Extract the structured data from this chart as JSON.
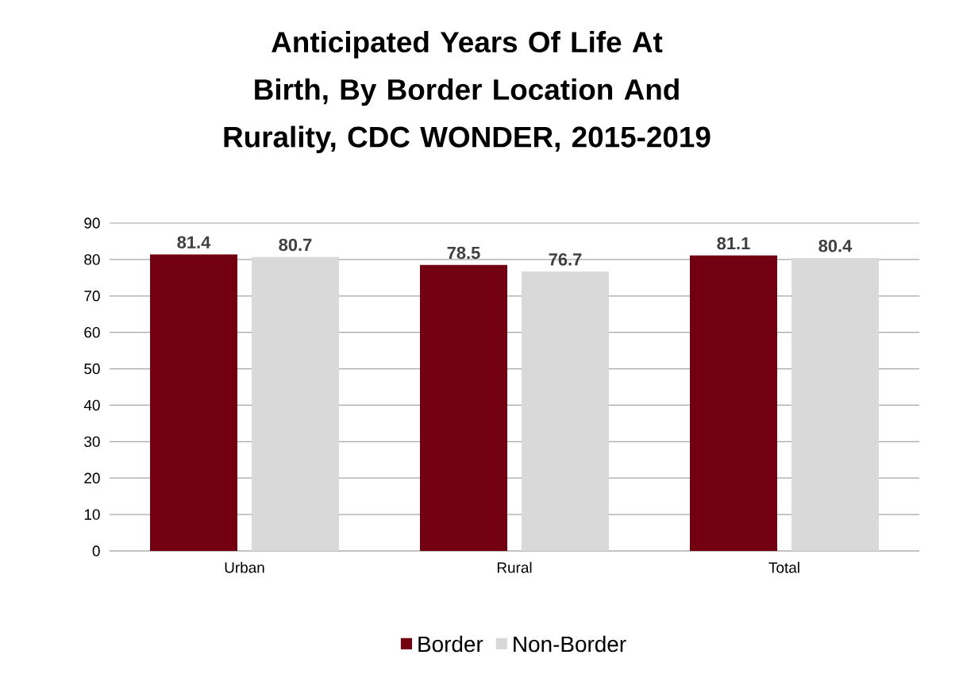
{
  "chart_data": {
    "type": "bar",
    "title": "Anticipated Years Of Life At Birth, By Border Location And Rurality, CDC WONDER, 2015-2019",
    "categories": [
      "Urban",
      "Rural",
      "Total"
    ],
    "series": [
      {
        "name": "Border",
        "color": "#720010",
        "values": [
          81.4,
          78.5,
          81.1
        ]
      },
      {
        "name": "Non-Border",
        "color": "#d9d9d9",
        "values": [
          80.7,
          76.7,
          80.4
        ]
      }
    ],
    "ylim": [
      0,
      90
    ],
    "yticks": [
      0,
      10,
      20,
      30,
      40,
      50,
      60,
      70,
      80,
      90
    ],
    "grid": "y",
    "legend": "bottom",
    "data_labels": true
  }
}
